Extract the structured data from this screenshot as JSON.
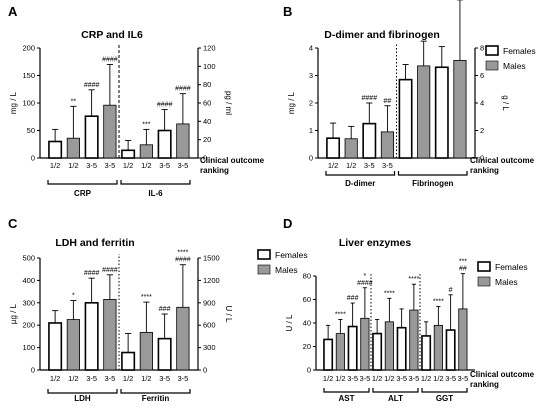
{
  "chart_data": [
    {
      "panel": "A",
      "title": "CRP and IL6",
      "type": "bar",
      "ylabel": "mg / L",
      "ylabel2": "pg / ml",
      "ylim": [
        0,
        200
      ],
      "ylim2": [
        0,
        120
      ],
      "yticks": [
        "0",
        "50",
        "100",
        "150",
        "200"
      ],
      "yticks2": [
        "0",
        "20",
        "40",
        "60",
        "80",
        "100",
        "120"
      ],
      "categories": [
        "1/2",
        "1/2",
        "3-5",
        "3-5",
        "1/2",
        "1/2",
        "3-5",
        "3-5"
      ],
      "groups": [
        "CRP",
        "IL-6"
      ],
      "outcome_label": [
        "Clinical outcome",
        "ranking"
      ],
      "legend": [],
      "bars": [
        {
          "sex": "F",
          "value": 30,
          "err": 22,
          "sig": ""
        },
        {
          "sex": "M",
          "value": 36,
          "err": 58,
          "sig": "**"
        },
        {
          "sex": "F",
          "value": 76,
          "err": 48,
          "sig": "####"
        },
        {
          "sex": "M",
          "value": 96,
          "err": 74,
          "sig": "####"
        },
        {
          "sex": "F",
          "value": 14,
          "err": 18,
          "sig": ""
        },
        {
          "sex": "M",
          "value": 24,
          "err": 28,
          "sig": "***"
        },
        {
          "sex": "F",
          "value": 50,
          "err": 38,
          "sig": "####"
        },
        {
          "sex": "M",
          "value": 62,
          "err": 55,
          "sig": "####"
        }
      ],
      "dividers": [
        4
      ]
    },
    {
      "panel": "B",
      "title": "D-dimer and fibrinogen",
      "type": "bar",
      "ylabel": "mg / L",
      "ylabel2": "g / L",
      "ylim": [
        0,
        4
      ],
      "ylim2": [
        0,
        8
      ],
      "yticks": [
        "0",
        "1",
        "2",
        "3",
        "4"
      ],
      "yticks2": [
        "0",
        "2",
        "4",
        "6",
        "8"
      ],
      "categories": [
        "1/2",
        "1/2",
        "3-5",
        "3-5",
        "",
        "",
        "",
        ""
      ],
      "groups": [
        "D-dimer",
        "Fibrinogen"
      ],
      "outcome_label": [
        "Clinical outcome",
        "ranking"
      ],
      "legend": [
        "Females",
        "Males"
      ],
      "bars": [
        {
          "sex": "F",
          "value": 0.72,
          "err": 0.55,
          "sig": ""
        },
        {
          "sex": "M",
          "value": 0.7,
          "err": 0.45,
          "sig": ""
        },
        {
          "sex": "F",
          "value": 1.25,
          "err": 0.75,
          "sig": "####"
        },
        {
          "sex": "M",
          "value": 0.95,
          "err": 0.95,
          "sig": "##"
        },
        {
          "sex": "F",
          "value": 2.85,
          "err": 0.55,
          "sig": ""
        },
        {
          "sex": "M",
          "value": 3.35,
          "err": 0.9,
          "sig": ""
        },
        {
          "sex": "F",
          "value": 3.3,
          "err": 0.75,
          "sig": ""
        },
        {
          "sex": "M",
          "value": 3.55,
          "err": 2.2,
          "sig": "*"
        }
      ],
      "dividers": [
        4
      ]
    },
    {
      "panel": "C",
      "title": "LDH and ferritin",
      "type": "bar",
      "ylabel": "µg / L",
      "ylabel2": "U / L",
      "ylim": [
        0,
        500
      ],
      "ylim2": [
        0,
        1500
      ],
      "yticks": [
        "0",
        "100",
        "200",
        "300",
        "400",
        "500"
      ],
      "yticks2": [
        "0",
        "300",
        "600",
        "900",
        "1200",
        "1500"
      ],
      "categories": [
        "1/2",
        "1/2",
        "3-5",
        "3-5",
        "1/2",
        "1/2",
        "3-5",
        "3-5"
      ],
      "groups": [
        "LDH",
        "Ferritin"
      ],
      "outcome_label": [
        "Clinical outcome",
        "ranking"
      ],
      "legend": [
        "Females",
        "Males"
      ],
      "bars": [
        {
          "sex": "F",
          "value": 210,
          "err": 55,
          "sig": ""
        },
        {
          "sex": "M",
          "value": 225,
          "err": 85,
          "sig": "*"
        },
        {
          "sex": "F",
          "value": 300,
          "err": 110,
          "sig": "####"
        },
        {
          "sex": "M",
          "value": 315,
          "err": 110,
          "sig": "####"
        },
        {
          "sex": "F",
          "value": 78,
          "err": 85,
          "sig": ""
        },
        {
          "sex": "M",
          "value": 168,
          "err": 135,
          "sig": "****"
        },
        {
          "sex": "F",
          "value": 140,
          "err": 110,
          "sig": "###"
        },
        {
          "sex": "M",
          "value": 280,
          "err": 190,
          "sig": "****"
        }
      ],
      "sig2": [
        "",
        "",
        "",
        "",
        "",
        "",
        "",
        "####"
      ],
      "dividers": [
        4
      ]
    },
    {
      "panel": "D",
      "title": "Liver enzymes",
      "type": "bar",
      "ylabel": "U / L",
      "ylabel2": "",
      "ylim": [
        0,
        80
      ],
      "yticks": [
        "0",
        "20",
        "40",
        "60",
        "80"
      ],
      "categories": [
        "1/2",
        "1/2",
        "3-5",
        "3-5",
        "1/2",
        "1/2",
        "3-5",
        "3-5",
        "1/2",
        "1/2",
        "3-5",
        "3-5"
      ],
      "groups": [
        "AST",
        "ALT",
        "GGT"
      ],
      "outcome_label": [
        "Clinical outcome",
        "ranking"
      ],
      "legend": [
        "Females",
        "Males"
      ],
      "bars": [
        {
          "sex": "F",
          "value": 26,
          "err": 12,
          "sig": ""
        },
        {
          "sex": "M",
          "value": 31,
          "err": 12,
          "sig": "****"
        },
        {
          "sex": "F",
          "value": 37,
          "err": 20,
          "sig": "###"
        },
        {
          "sex": "M",
          "value": 44,
          "err": 26,
          "sig": "*"
        },
        {
          "sex": "F",
          "value": 31,
          "err": 12,
          "sig": ""
        },
        {
          "sex": "M",
          "value": 41,
          "err": 20,
          "sig": "****"
        },
        {
          "sex": "F",
          "value": 36,
          "err": 16,
          "sig": ""
        },
        {
          "sex": "M",
          "value": 51,
          "err": 22,
          "sig": "****"
        },
        {
          "sex": "F",
          "value": 29,
          "err": 12,
          "sig": ""
        },
        {
          "sex": "M",
          "value": 38,
          "err": 16,
          "sig": "****"
        },
        {
          "sex": "F",
          "value": 34,
          "err": 30,
          "sig": "#"
        },
        {
          "sex": "M",
          "value": 52,
          "err": 30,
          "sig": "***"
        }
      ],
      "sig2": [
        "",
        "",
        "",
        "####",
        "",
        "",
        "",
        "",
        "",
        "",
        "",
        "##"
      ],
      "dividers": [
        4,
        8
      ]
    }
  ],
  "colors": {
    "female_fill": "#ffffff",
    "male_fill": "#999999",
    "stroke": "#000000"
  }
}
